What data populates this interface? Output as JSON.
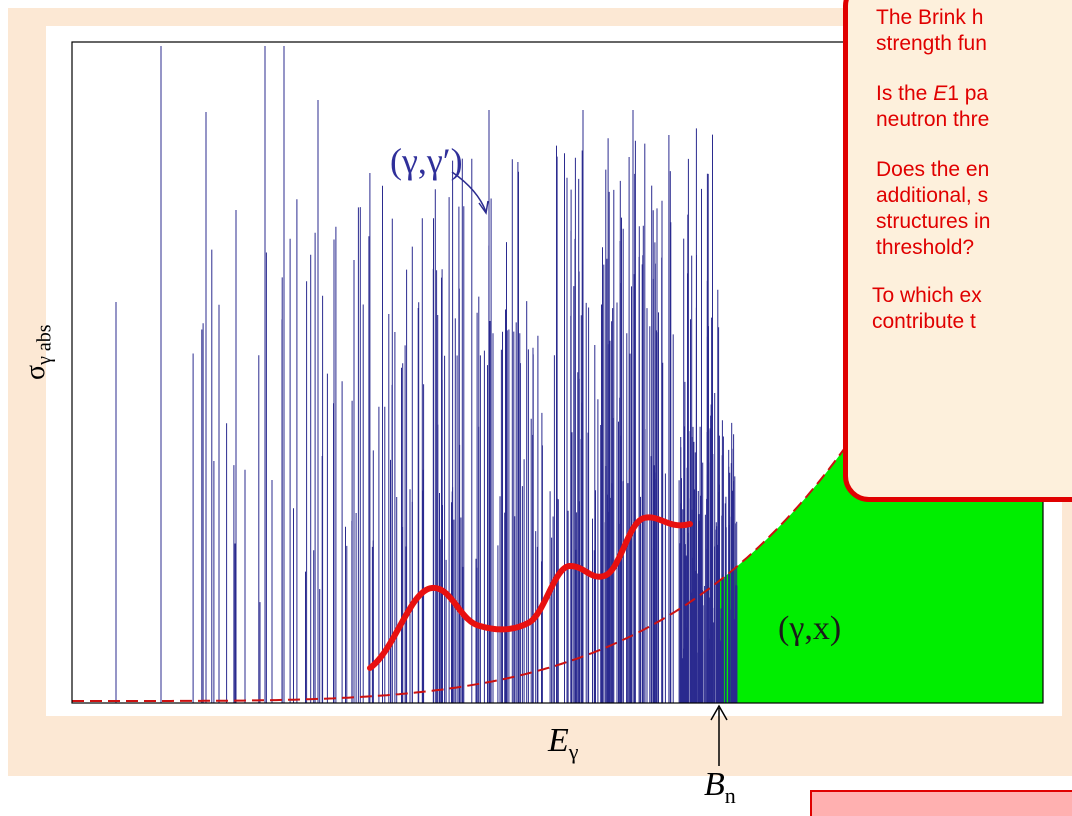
{
  "chart_data": {
    "type": "line",
    "title": "",
    "xlabel": "E",
    "xlabel_sub": "γ",
    "ylabel": "σ",
    "ylabel_sub": "γ abs",
    "threshold_label": "B",
    "threshold_label_sub": "n",
    "annotations": {
      "gamma_gamma_prime": "(γ,γ′)",
      "gamma_x": "(γ,x)"
    },
    "series": [
      {
        "role": "level-spectrum",
        "color": "#2b2b8f"
      },
      {
        "role": "envelope-dashed",
        "color": "#cc1111"
      },
      {
        "role": "strength-curve",
        "color": "#e81010"
      },
      {
        "role": "above-threshold-fill",
        "color": "#00ee00"
      }
    ],
    "grid": false,
    "legend": "none"
  },
  "callout": {
    "line1": "The Brink h",
    "line2": "strength fun",
    "line3a": "Is the ",
    "line3b": "E",
    "line3c": "1 pa",
    "line4": "neutron thre",
    "line5": "Does the en",
    "line6": "additional, s",
    "line7": "structures in",
    "line8": "threshold?",
    "line9": "To which ex",
    "line10": "contribute t"
  },
  "colors": {
    "background_panel": "#fce8d4",
    "callout_border": "#e00000",
    "callout_text": "#e00000"
  }
}
